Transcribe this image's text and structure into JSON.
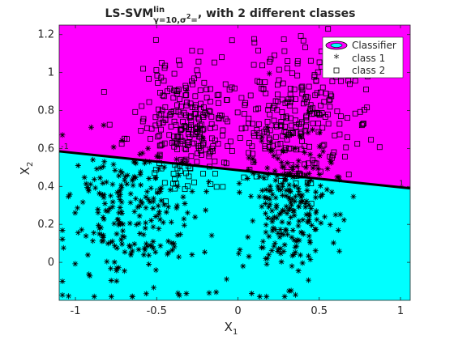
{
  "chart_data": {
    "type": "scatter",
    "title": {
      "main": "LS-SVM",
      "sup": "lin",
      "sub": "γ=10,σ",
      "sub_sup": "2",
      "sub_tail": "=",
      "tail": ", with 2 different classes"
    },
    "xlabel": {
      "base": "X",
      "sub": "1"
    },
    "ylabel": {
      "base": "X",
      "sub": "2"
    },
    "xlim": [
      -1.1,
      1.06
    ],
    "ylim": [
      -0.2,
      1.25
    ],
    "xticks": [
      -1,
      -0.5,
      0,
      0.5,
      1
    ],
    "xtick_labels": [
      "-1",
      "-0.5",
      "0",
      "0.5",
      "1"
    ],
    "yticks": [
      0,
      0.2,
      0.4,
      0.6,
      0.8,
      1,
      1.2
    ],
    "ytick_labels": [
      "0",
      "0.2",
      "0.4",
      "0.6",
      "0.8",
      "1",
      "1.2"
    ],
    "grid": false,
    "legend_position": "top-right",
    "legend": [
      "Classifier",
      "class 1",
      "class 2"
    ],
    "colors": {
      "class2_region": "#ff00ff",
      "class1_region": "#00ffff",
      "boundary": "#000000",
      "markers": "#000000",
      "axes": "#262626"
    },
    "boundary": {
      "x": [
        -1.1,
        1.06
      ],
      "y": [
        0.585,
        0.39
      ],
      "annotation_left": "-1",
      "annotation_right": "1"
    },
    "series": [
      {
        "name": "class 1",
        "marker": "asterisk",
        "count": 500,
        "clusters": [
          {
            "center": [
              -0.65,
              0.25
            ],
            "spread": [
              0.2,
              0.2
            ]
          },
          {
            "center": [
              0.32,
              0.3
            ],
            "spread": [
              0.15,
              0.2
            ]
          }
        ]
      },
      {
        "name": "class 2",
        "marker": "square",
        "count": 500,
        "clusters": [
          {
            "center": [
              -0.3,
              0.72
            ],
            "spread": [
              0.15,
              0.17
            ]
          },
          {
            "center": [
              0.35,
              0.78
            ],
            "spread": [
              0.2,
              0.18
            ]
          }
        ]
      }
    ]
  }
}
